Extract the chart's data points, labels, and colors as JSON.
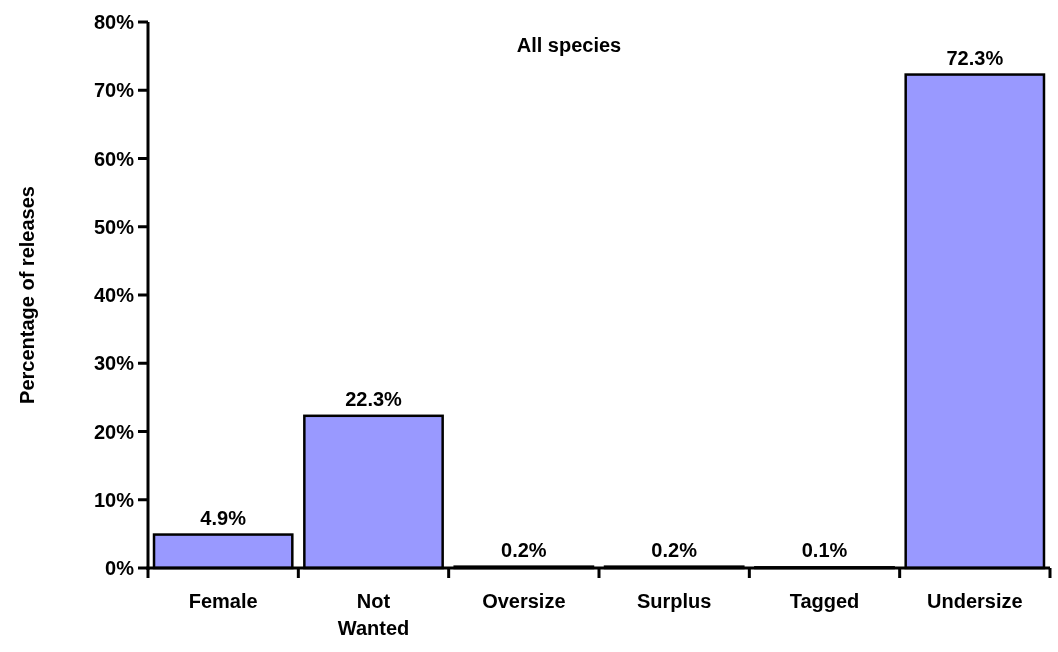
{
  "chart_data": {
    "type": "bar",
    "title": "All species",
    "ylabel": "Percentage of releases",
    "categories": [
      "Female",
      "Not Wanted",
      "Oversize",
      "Surplus",
      "Tagged",
      "Undersize"
    ],
    "values": [
      4.9,
      22.3,
      0.2,
      0.2,
      0.1,
      72.3
    ],
    "value_labels": [
      "4.9%",
      "22.3%",
      "0.2%",
      "0.2%",
      "0.1%",
      "72.3%"
    ],
    "color": "#9999ff",
    "ylim": [
      0,
      80
    ],
    "yticks": [
      {
        "value": 0,
        "label": "0%"
      },
      {
        "value": 10,
        "label": "10%"
      },
      {
        "value": 20,
        "label": "20%"
      },
      {
        "value": 30,
        "label": "30%"
      },
      {
        "value": 40,
        "label": "40%"
      },
      {
        "value": 50,
        "label": "50%"
      },
      {
        "value": 60,
        "label": "60%"
      },
      {
        "value": 70,
        "label": "70%"
      },
      {
        "value": 80,
        "label": "80%"
      }
    ],
    "grid": false
  }
}
